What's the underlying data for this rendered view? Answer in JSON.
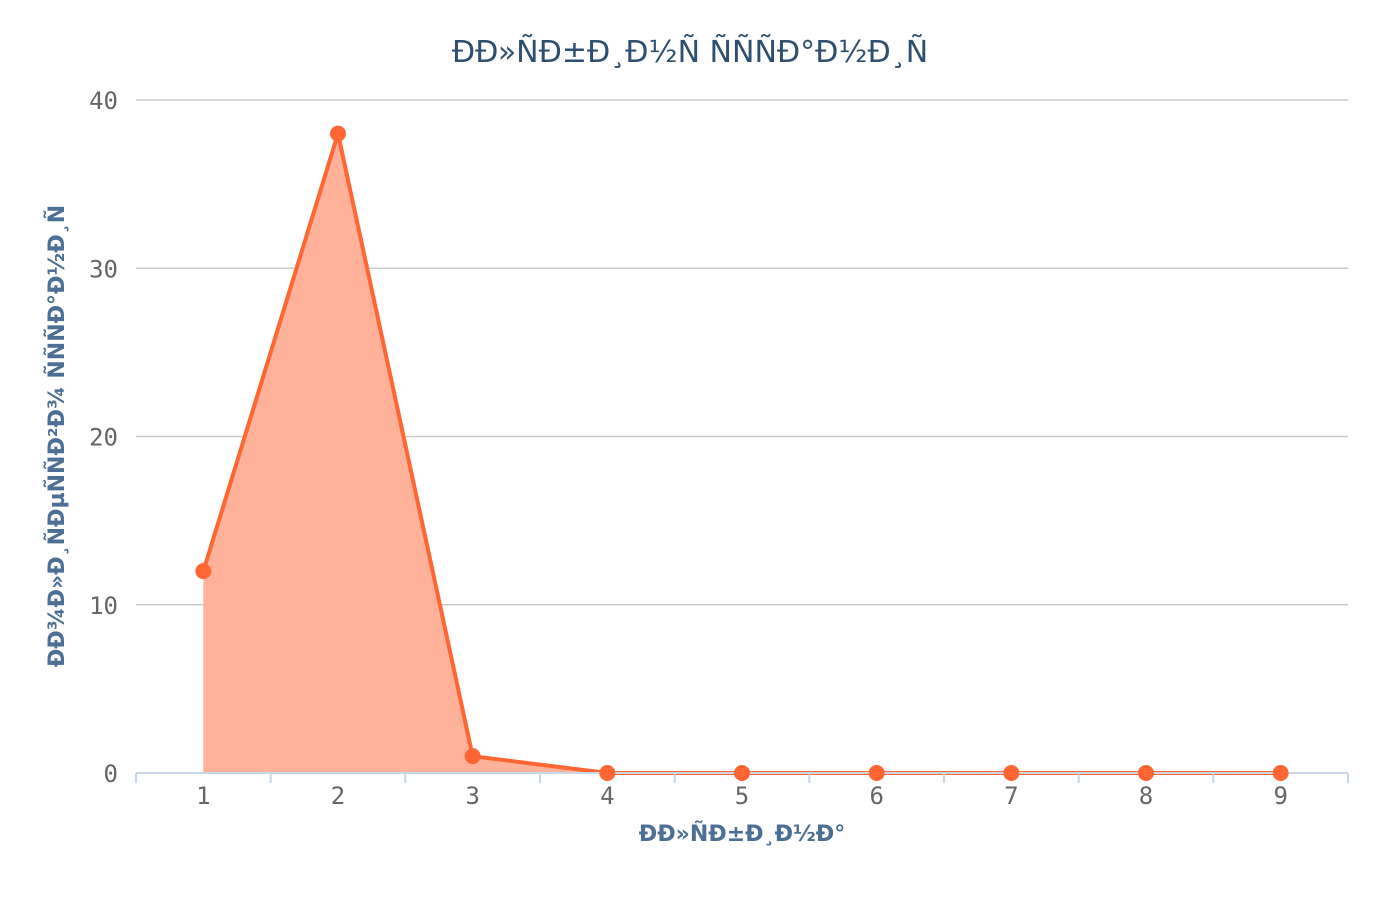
{
  "chart_data": {
    "type": "area",
    "title": "ÐÐ»ÑÐ±Ð¸Ð½Ñ ÑÑÑÐ°Ð½Ð¸Ñ",
    "xlabel": "ÐÐ»ÑÐ±Ð¸Ð½Ð°",
    "ylabel": "ÐÐ¾Ð»Ð¸ÑÐµÑÑÐ²Ð¾ ÑÑÑÐ°Ð½Ð¸Ñ",
    "categories": [
      "1",
      "2",
      "3",
      "4",
      "5",
      "6",
      "7",
      "8",
      "9"
    ],
    "values": [
      12,
      38,
      1,
      0,
      0,
      0,
      0,
      0,
      0
    ],
    "ylim": [
      0,
      40
    ],
    "yticks": [
      "0",
      "10",
      "20",
      "30",
      "40"
    ],
    "grid": true,
    "colors": {
      "line": "#ff6633",
      "fill": "#ffb299",
      "title": "#2f4f6f",
      "axis_label": "#4b6f95",
      "tick": "#666666",
      "grid": "#cccccc",
      "axis": "#c9d7e6"
    }
  }
}
